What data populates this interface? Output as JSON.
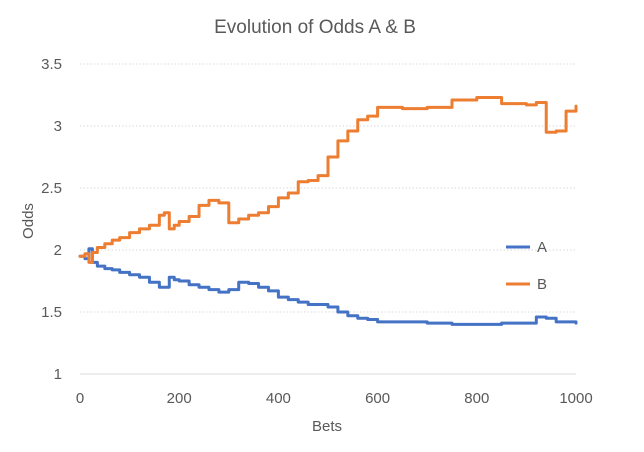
{
  "chart_data": {
    "type": "line",
    "title": "Evolution of Odds A & B",
    "xlabel": "Bets",
    "ylabel": "Odds",
    "xlim": [
      0,
      1000
    ],
    "ylim": [
      1,
      3.5
    ],
    "x_ticks": [
      "0",
      "200",
      "400",
      "600",
      "800",
      "1000"
    ],
    "y_ticks": [
      "1",
      "1.5",
      "2",
      "2.5",
      "3",
      "3.5"
    ],
    "grid": true,
    "legend": "right",
    "series": [
      {
        "name": "A",
        "color": "#4472c4",
        "x": [
          0,
          10,
          18,
          25,
          35,
          50,
          65,
          80,
          100,
          120,
          140,
          160,
          170,
          180,
          190,
          200,
          220,
          240,
          260,
          280,
          300,
          320,
          340,
          360,
          380,
          400,
          420,
          440,
          460,
          480,
          500,
          520,
          540,
          560,
          580,
          600,
          650,
          700,
          750,
          800,
          850,
          900,
          920,
          940,
          960,
          980,
          1000
        ],
        "y": [
          1.95,
          1.93,
          2.01,
          1.9,
          1.87,
          1.85,
          1.84,
          1.82,
          1.8,
          1.78,
          1.74,
          1.7,
          1.7,
          1.78,
          1.76,
          1.75,
          1.72,
          1.7,
          1.68,
          1.66,
          1.68,
          1.74,
          1.73,
          1.7,
          1.67,
          1.62,
          1.6,
          1.58,
          1.56,
          1.56,
          1.54,
          1.5,
          1.47,
          1.45,
          1.44,
          1.42,
          1.42,
          1.41,
          1.4,
          1.4,
          1.41,
          1.41,
          1.46,
          1.45,
          1.42,
          1.42,
          1.41
        ]
      },
      {
        "name": "B",
        "color": "#ed7d31",
        "x": [
          0,
          10,
          18,
          25,
          35,
          50,
          65,
          80,
          100,
          120,
          140,
          160,
          170,
          180,
          190,
          200,
          220,
          240,
          260,
          280,
          300,
          320,
          340,
          360,
          380,
          400,
          420,
          440,
          460,
          480,
          500,
          520,
          540,
          560,
          580,
          600,
          650,
          700,
          750,
          800,
          850,
          900,
          920,
          940,
          960,
          980,
          1000
        ],
        "y": [
          1.95,
          1.97,
          1.9,
          1.98,
          2.02,
          2.05,
          2.08,
          2.1,
          2.14,
          2.17,
          2.2,
          2.28,
          2.3,
          2.17,
          2.2,
          2.23,
          2.27,
          2.36,
          2.4,
          2.38,
          2.22,
          2.25,
          2.28,
          2.3,
          2.35,
          2.42,
          2.46,
          2.55,
          2.56,
          2.6,
          2.75,
          2.88,
          2.96,
          3.05,
          3.08,
          3.15,
          3.14,
          3.15,
          3.21,
          3.23,
          3.18,
          3.17,
          3.19,
          2.95,
          2.96,
          3.12,
          3.16
        ]
      }
    ]
  }
}
